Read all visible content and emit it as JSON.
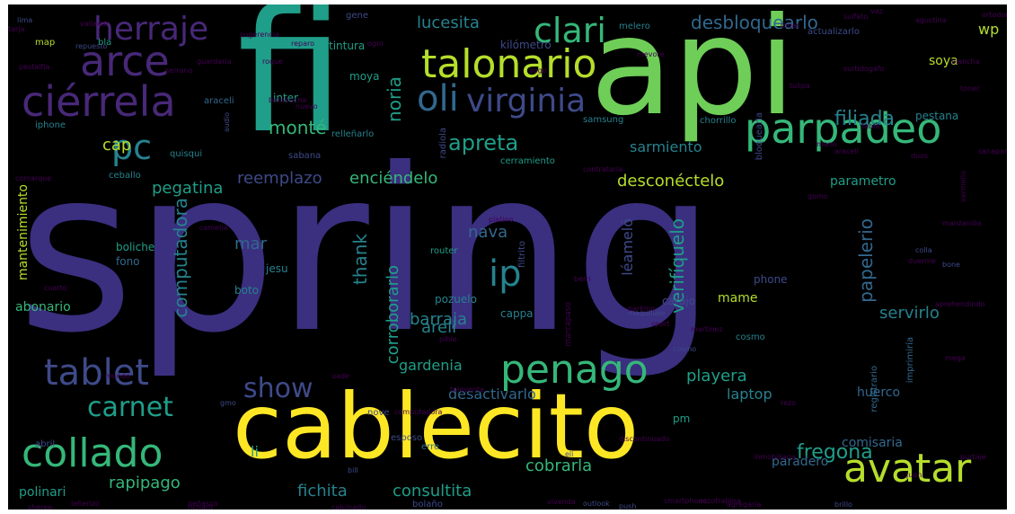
{
  "palette": {
    "background": "#000000",
    "purple": "#3b2f80",
    "violet": "#482878",
    "deep_violet": "#440154",
    "blue": "#31688e",
    "slate": "#3e4a89",
    "teal": "#26828e",
    "sea": "#1f9e89",
    "green": "#35b779",
    "lime": "#6ece58",
    "yellow_green": "#b5de2b",
    "yellow": "#fde725"
  },
  "words": [
    {
      "text": "spring",
      "color": "purple",
      "size": 250
    },
    {
      "text": "fi",
      "color": "sea",
      "size": 190
    },
    {
      "text": "api",
      "color": "lime",
      "size": 150
    },
    {
      "text": "cablecito",
      "color": "yellow",
      "size": 100
    },
    {
      "text": "talonario",
      "color": "yellow_green",
      "size": 44
    },
    {
      "text": "parpadeo",
      "color": "green",
      "size": 46
    },
    {
      "text": "arce",
      "color": "violet",
      "size": 46
    },
    {
      "text": "herraje",
      "color": "violet",
      "size": 36
    },
    {
      "text": "ciérrela",
      "color": "violet",
      "size": 46
    },
    {
      "text": "clari",
      "color": "green",
      "size": 38
    },
    {
      "text": "oli",
      "color": "blue",
      "size": 40
    },
    {
      "text": "virginia",
      "color": "slate",
      "size": 36
    },
    {
      "text": "pc",
      "color": "teal",
      "size": 38
    },
    {
      "text": "avatar",
      "color": "yellow_green",
      "size": 44
    },
    {
      "text": "penago",
      "color": "green",
      "size": 44
    },
    {
      "text": "tablet",
      "color": "slate",
      "size": 40
    },
    {
      "text": "collado",
      "color": "green",
      "size": 44
    },
    {
      "text": "ip",
      "color": "teal",
      "size": 40
    },
    {
      "text": "apreta",
      "color": "sea",
      "size": 24
    },
    {
      "text": "show",
      "color": "slate",
      "size": 30
    },
    {
      "text": "carnet",
      "color": "sea",
      "size": 30
    },
    {
      "text": "fregona",
      "color": "sea",
      "size": 22
    },
    {
      "text": "filiada",
      "color": "teal",
      "size": 22
    },
    {
      "text": "desbloquearlo",
      "color": "blue",
      "size": 20
    },
    {
      "text": "lucesita",
      "color": "teal",
      "size": 18
    },
    {
      "text": "noria",
      "color": "sea",
      "size": 20
    },
    {
      "text": "monté",
      "color": "green",
      "size": 20
    },
    {
      "text": "reemplazo",
      "color": "slate",
      "size": 18
    },
    {
      "text": "pegatina",
      "color": "sea",
      "size": 18
    },
    {
      "text": "enciéndelo",
      "color": "green",
      "size": 18
    },
    {
      "text": "desconéctelo",
      "color": "yellow_green",
      "size": 18
    },
    {
      "text": "sarmiento",
      "color": "teal",
      "size": 16
    },
    {
      "text": "cap",
      "color": "yellow_green",
      "size": 18
    },
    {
      "text": "computadora",
      "color": "teal",
      "size": 20
    },
    {
      "text": "thank",
      "color": "teal",
      "size": 20
    },
    {
      "text": "corroborarlo",
      "color": "sea",
      "size": 18
    },
    {
      "text": "nava",
      "color": "blue",
      "size": 18
    },
    {
      "text": "areli",
      "color": "teal",
      "size": 18
    },
    {
      "text": "barraja",
      "color": "teal",
      "size": 18
    },
    {
      "text": "verifíquelo",
      "color": "sea",
      "size": 20
    },
    {
      "text": "léameló",
      "color": "slate",
      "size": 16
    },
    {
      "text": "papelerio",
      "color": "blue",
      "size": 20
    },
    {
      "text": "playera",
      "color": "sea",
      "size": 18
    },
    {
      "text": "servirlo",
      "color": "teal",
      "size": 18
    },
    {
      "text": "gardenia",
      "color": "sea",
      "size": 16
    },
    {
      "text": "desactivarlo",
      "color": "blue",
      "size": 16
    },
    {
      "text": "laptop",
      "color": "teal",
      "size": 16
    },
    {
      "text": "comisaria",
      "color": "blue",
      "size": 14
    },
    {
      "text": "paradero",
      "color": "blue",
      "size": 14
    },
    {
      "text": "consultita",
      "color": "sea",
      "size": 18
    },
    {
      "text": "fichita",
      "color": "teal",
      "size": 18
    },
    {
      "text": "rapipago",
      "color": "green",
      "size": 18
    },
    {
      "text": "cobrarla",
      "color": "green",
      "size": 18
    },
    {
      "text": "mar",
      "color": "blue",
      "size": 18
    },
    {
      "text": "mame",
      "color": "yellow_green",
      "size": 14
    },
    {
      "text": "mantenimiento",
      "color": "yellow_green",
      "size": 14
    },
    {
      "text": "abonario",
      "color": "green",
      "size": 14
    },
    {
      "text": "parametro",
      "color": "sea",
      "size": 14
    },
    {
      "text": "soya",
      "color": "yellow_green",
      "size": 14
    },
    {
      "text": "wp",
      "color": "yellow_green",
      "size": 16
    },
    {
      "text": "pestana",
      "color": "teal",
      "size": 12
    },
    {
      "text": "huerco",
      "color": "blue",
      "size": 14
    },
    {
      "text": "pm",
      "color": "sea",
      "size": 12
    },
    {
      "text": "li",
      "color": "sea",
      "size": 16
    },
    {
      "text": "polinari",
      "color": "sea",
      "size": 14
    },
    {
      "text": "tintura",
      "color": "sea",
      "size": 12
    },
    {
      "text": "moya",
      "color": "sea",
      "size": 12
    },
    {
      "text": "kilómetro",
      "color": "slate",
      "size": 12
    },
    {
      "text": "cerramiento",
      "color": "sea",
      "size": 10
    },
    {
      "text": "boliche",
      "color": "sea",
      "size": 12
    },
    {
      "text": "router",
      "color": "sea",
      "size": 10
    },
    {
      "text": "pozuelo",
      "color": "teal",
      "size": 12
    },
    {
      "text": "jesu",
      "color": "teal",
      "size": 12
    },
    {
      "text": "fono",
      "color": "blue",
      "size": 12
    },
    {
      "text": "boto",
      "color": "teal",
      "size": 12
    },
    {
      "text": "cappa",
      "color": "teal",
      "size": 12
    },
    {
      "text": "carajo",
      "color": "slate",
      "size": 12
    },
    {
      "text": "cosmo",
      "color": "teal",
      "size": 10
    },
    {
      "text": "phone",
      "color": "slate",
      "size": 12
    },
    {
      "text": "ceballo",
      "color": "teal",
      "size": 10
    },
    {
      "text": "inter",
      "color": "sea",
      "size": 12
    },
    {
      "text": "relleñarlo",
      "color": "teal",
      "size": 10
    },
    {
      "text": "quisqui",
      "color": "teal",
      "size": 10
    },
    {
      "text": "sabana",
      "color": "slate",
      "size": 10
    },
    {
      "text": "iphone",
      "color": "teal",
      "size": 10
    },
    {
      "text": "samsung",
      "color": "teal",
      "size": 10
    },
    {
      "text": "chorrillo",
      "color": "teal",
      "size": 10
    },
    {
      "text": "map",
      "color": "yellow_green",
      "size": 10
    },
    {
      "text": "bla",
      "color": "sea",
      "size": 10
    },
    {
      "text": "actualizarlo",
      "color": "slate",
      "size": 10
    },
    {
      "text": "melero",
      "color": "teal",
      "size": 10
    },
    {
      "text": "araceli",
      "color": "blue",
      "size": 10
    },
    {
      "text": "filtrito",
      "color": "slate",
      "size": 10
    },
    {
      "text": "radiola",
      "color": "slate",
      "size": 10
    },
    {
      "text": "imprimiría",
      "color": "blue",
      "size": 10
    },
    {
      "text": "registrario",
      "color": "blue",
      "size": 10
    },
    {
      "text": "bloquearia",
      "color": "slate",
      "size": 10
    },
    {
      "text": "esposo",
      "color": "slate",
      "size": 10
    },
    {
      "text": "abril",
      "color": "slate",
      "size": 10
    },
    {
      "text": "erre",
      "color": "blue",
      "size": 10
    },
    {
      "text": "nove",
      "color": "slate",
      "size": 10
    },
    {
      "text": "bolaño",
      "color": "slate",
      "size": 10
    },
    {
      "text": "gene",
      "color": "slate",
      "size": 10
    },
    {
      "text": "marcapaso",
      "color": "deep_violet",
      "size": 9
    },
    {
      "text": "bill",
      "color": "slate",
      "size": 8
    },
    {
      "text": "gmo",
      "color": "slate",
      "size": 8
    },
    {
      "text": "tulipa",
      "color": "deep_violet",
      "size": 8
    },
    {
      "text": "dinar",
      "color": "deep_violet",
      "size": 8
    },
    {
      "text": "agustina",
      "color": "deep_violet",
      "size": 8
    },
    {
      "text": "ortodoncia",
      "color": "deep_violet",
      "size": 8
    },
    {
      "text": "repuesto",
      "color": "slate",
      "size": 8
    },
    {
      "text": "platino",
      "color": "deep_violet",
      "size": 8
    },
    {
      "text": "parking",
      "color": "deep_violet",
      "size": 8
    },
    {
      "text": "berri",
      "color": "deep_violet",
      "size": 8
    },
    {
      "text": "cosmo",
      "color": "slate",
      "size": 8
    },
    {
      "text": "martinez",
      "color": "deep_violet",
      "size": 8
    },
    {
      "text": "sport",
      "color": "deep_violet",
      "size": 8
    },
    {
      "text": "maquillaje",
      "color": "slate",
      "size": 8
    },
    {
      "text": "computadora",
      "color": "deep_violet",
      "size": 8
    },
    {
      "text": "pihle",
      "color": "deep_violet",
      "size": 8
    },
    {
      "text": "televenta",
      "color": "deep_violet",
      "size": 8
    },
    {
      "text": "sheree",
      "color": "deep_violet",
      "size": 8
    },
    {
      "text": "leñerizo",
      "color": "deep_violet",
      "size": 8
    },
    {
      "text": "peñasco",
      "color": "deep_violet",
      "size": 8
    },
    {
      "text": "richard",
      "color": "deep_violet",
      "size": 8
    },
    {
      "text": "calcinado",
      "color": "deep_violet",
      "size": 8
    },
    {
      "text": "outlook",
      "color": "slate",
      "size": 8
    },
    {
      "text": "push",
      "color": "slate",
      "size": 8
    },
    {
      "text": "smartphone",
      "color": "deep_violet",
      "size": 8
    },
    {
      "text": "rezotrabina",
      "color": "deep_violet",
      "size": 8
    },
    {
      "text": "agregaria",
      "color": "deep_violet",
      "size": 8
    },
    {
      "text": "brillo",
      "color": "slate",
      "size": 8
    },
    {
      "text": "vivenda",
      "color": "deep_violet",
      "size": 8
    },
    {
      "text": "eli",
      "color": "slate",
      "size": 8
    },
    {
      "text": "discontinuado",
      "color": "deep_violet",
      "size": 8
    },
    {
      "text": "mega",
      "color": "deep_violet",
      "size": 8
    },
    {
      "text": "colla",
      "color": "slate",
      "size": 8
    },
    {
      "text": "bone",
      "color": "slate",
      "size": 8
    },
    {
      "text": "surtidogafo",
      "color": "deep_violet",
      "size": 8
    },
    {
      "text": "duos",
      "color": "deep_violet",
      "size": 8
    },
    {
      "text": "araceli",
      "color": "deep_violet",
      "size": 8
    },
    {
      "text": "gomo",
      "color": "deep_violet",
      "size": 8
    },
    {
      "text": "tabla",
      "color": "deep_violet",
      "size": 8
    },
    {
      "text": "serrano",
      "color": "deep_violet",
      "size": 8
    },
    {
      "text": "contratarla",
      "color": "deep_violet",
      "size": 8
    },
    {
      "text": "camelia",
      "color": "deep_violet",
      "size": 8
    },
    {
      "text": "vermello",
      "color": "deep_violet",
      "size": 8
    },
    {
      "text": "mevore",
      "color": "deep_violet",
      "size": 8
    },
    {
      "text": "yogo",
      "color": "deep_violet",
      "size": 8
    },
    {
      "text": "bambucha",
      "color": "deep_violet",
      "size": 8
    },
    {
      "text": "sanaparia",
      "color": "deep_violet",
      "size": 8
    },
    {
      "text": "mundo",
      "color": "deep_violet",
      "size": 8
    },
    {
      "text": "aprehendindo",
      "color": "deep_violet",
      "size": 8
    },
    {
      "text": "audio",
      "color": "slate",
      "size": 8
    },
    {
      "text": "cuarto",
      "color": "deep_violet",
      "size": 8
    },
    {
      "text": "lima",
      "color": "slate",
      "size": 8
    },
    {
      "text": "tarja",
      "color": "deep_violet",
      "size": 8
    },
    {
      "text": "pestalfia",
      "color": "deep_violet",
      "size": 8
    },
    {
      "text": "comarque",
      "color": "deep_violet",
      "size": 8
    },
    {
      "text": "ogro",
      "color": "deep_violet",
      "size": 8
    },
    {
      "text": "reparo",
      "color": "deep_violet",
      "size": 8
    },
    {
      "text": "roque",
      "color": "deep_violet",
      "size": 8
    },
    {
      "text": "mano",
      "color": "deep_violet",
      "size": 8
    },
    {
      "text": "duerme",
      "color": "deep_violet",
      "size": 8
    },
    {
      "text": "inmobiliaria",
      "color": "deep_violet",
      "size": 8
    },
    {
      "text": "uade",
      "color": "deep_violet",
      "size": 8
    },
    {
      "text": "purtaje",
      "color": "deep_violet",
      "size": 8
    },
    {
      "text": "sugerencia",
      "color": "deep_violet",
      "size": 8
    },
    {
      "text": "valladar",
      "color": "deep_violet",
      "size": 8
    },
    {
      "text": "manzanilla",
      "color": "deep_violet",
      "size": 8
    },
    {
      "text": "nuevo",
      "color": "deep_violet",
      "size": 8
    },
    {
      "text": "vez",
      "color": "deep_violet",
      "size": 8
    },
    {
      "text": "guardaria",
      "color": "deep_violet",
      "size": 8
    },
    {
      "text": "sulfato",
      "color": "deep_violet",
      "size": 8
    },
    {
      "text": "toner",
      "color": "deep_violet",
      "size": 8
    },
    {
      "text": "plancha",
      "color": "deep_violet",
      "size": 8
    },
    {
      "text": "juani",
      "color": "deep_violet",
      "size": 8
    },
    {
      "text": "rezo",
      "color": "deep_violet",
      "size": 8
    }
  ]
}
